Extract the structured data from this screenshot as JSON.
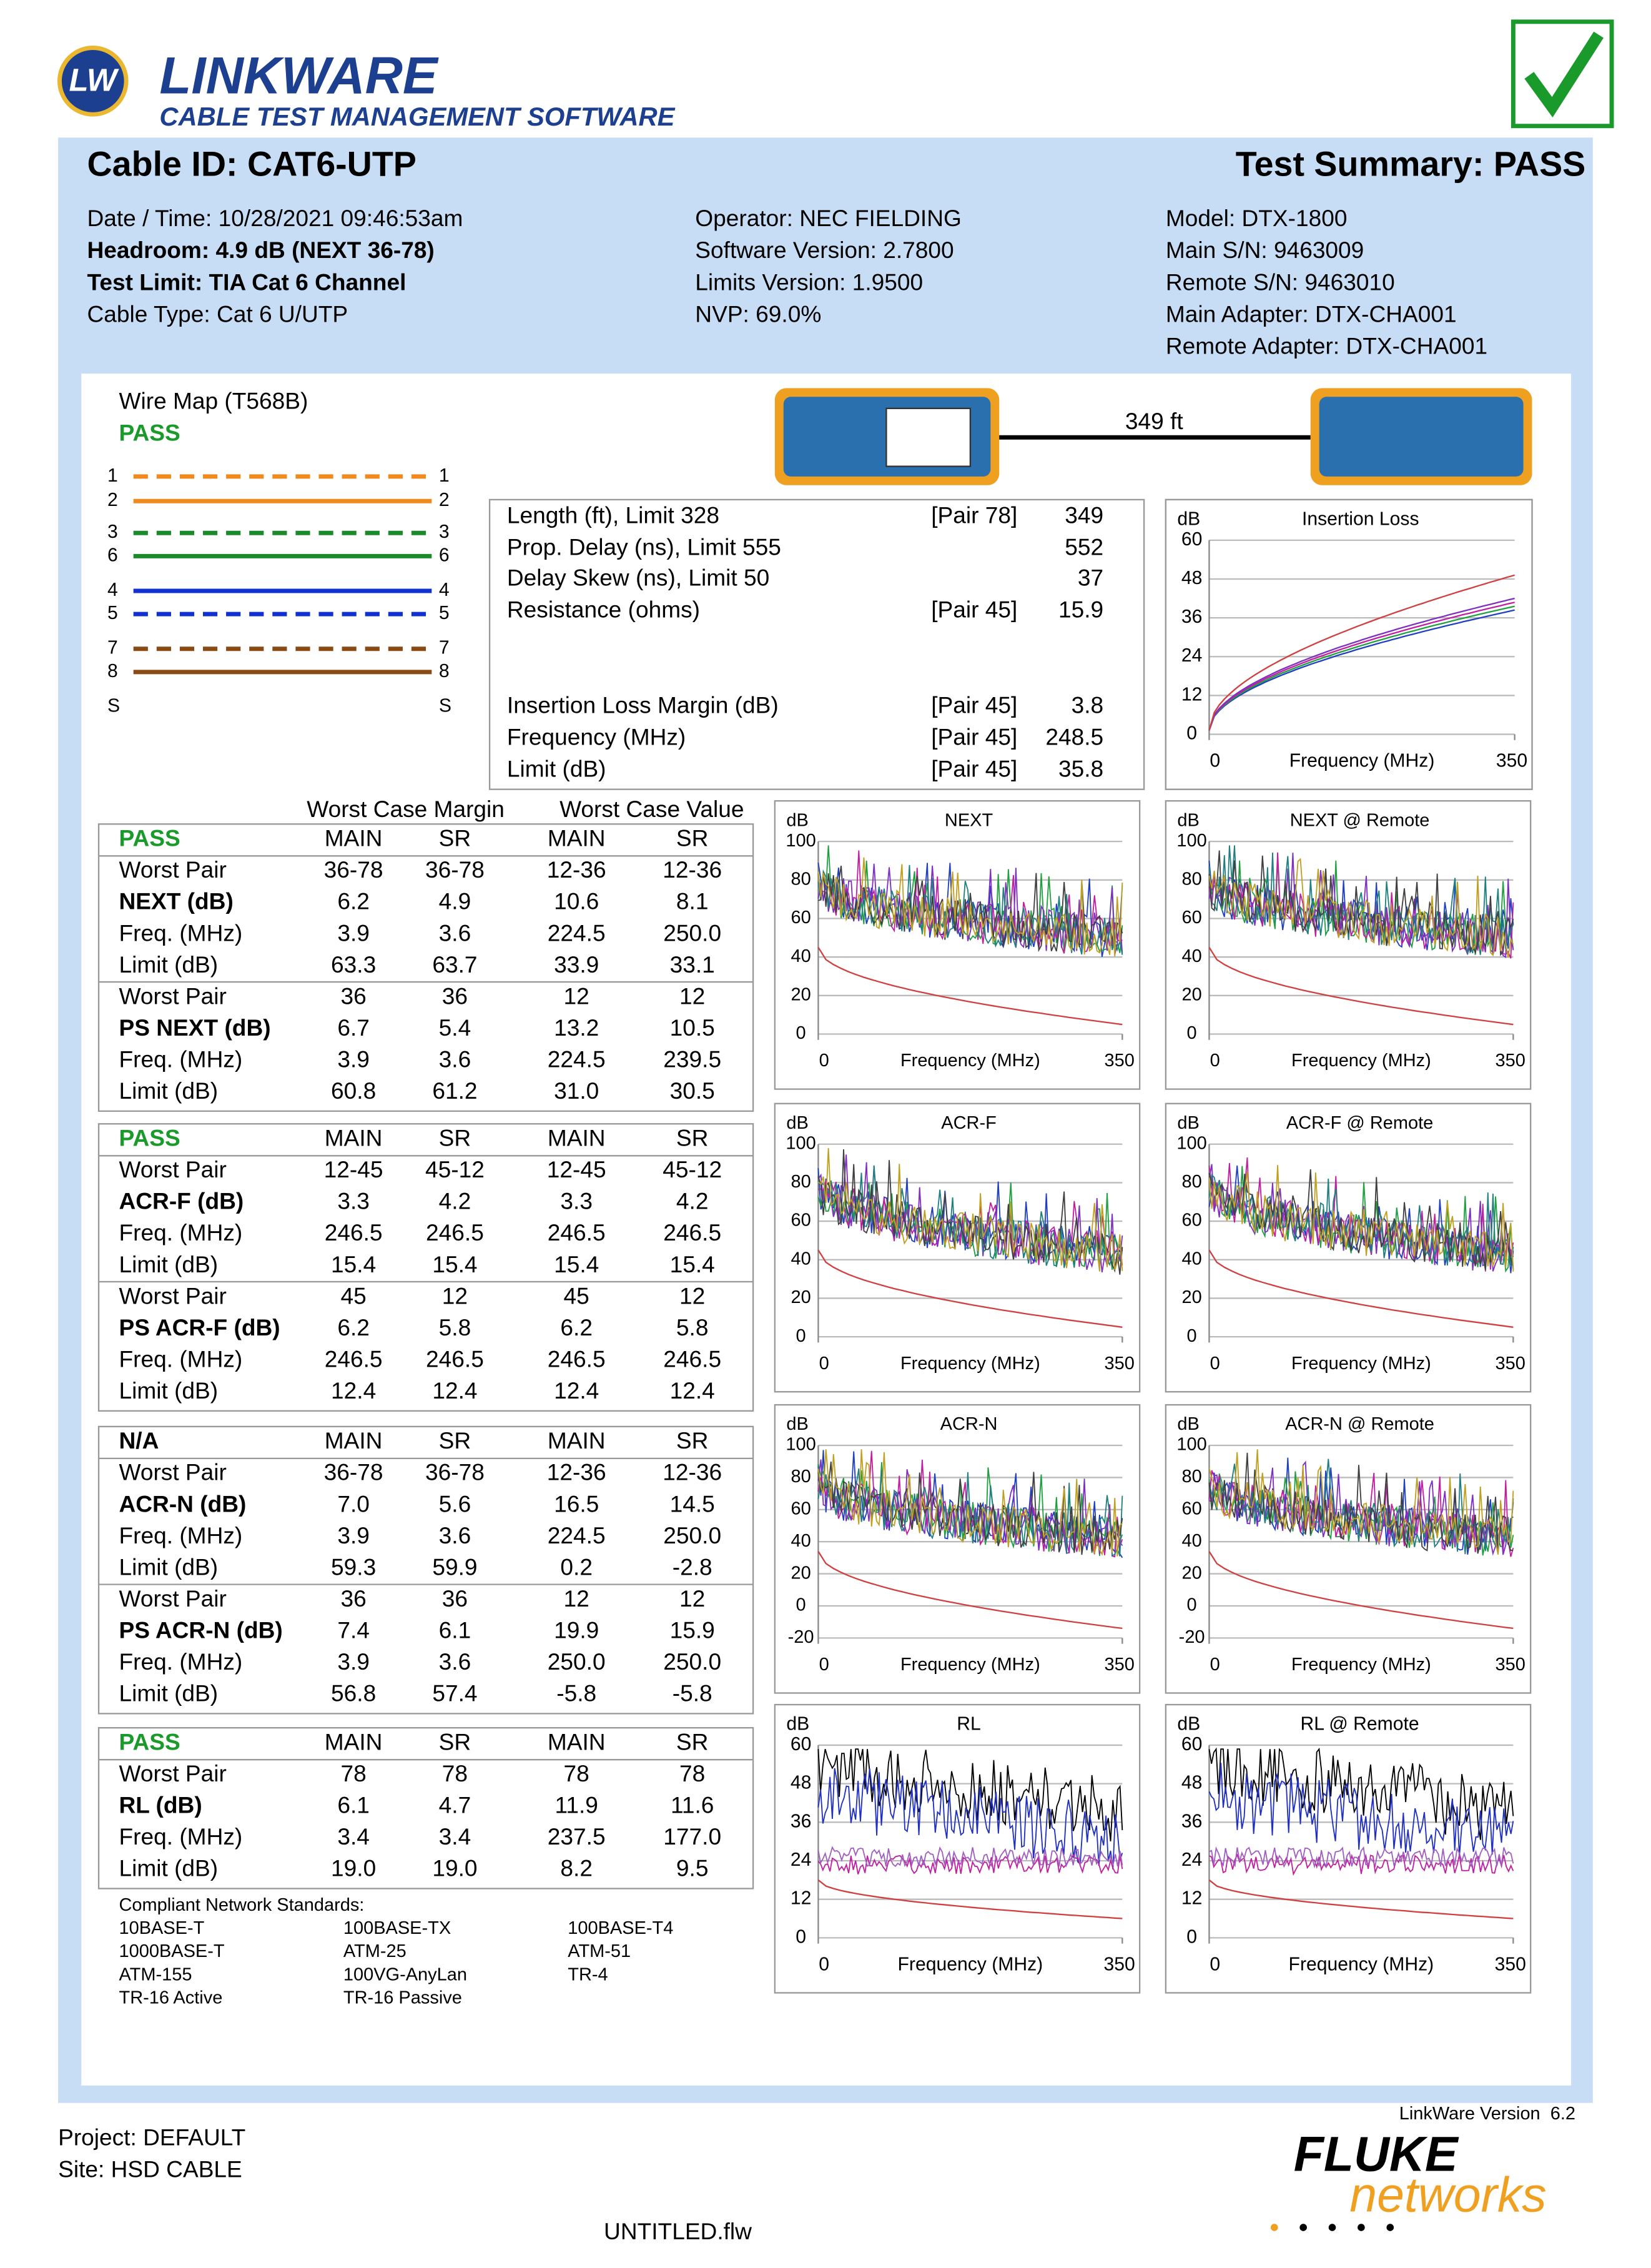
{
  "header": {
    "logo": "LW",
    "brand": "LINKWARE",
    "tagline": "CABLE TEST MANAGEMENT SOFTWARE"
  },
  "summary": {
    "cable_id": "Cable ID: CAT6-UTP",
    "result": "Test Summary: PASS"
  },
  "info": [
    [
      "Date / Time: 10/28/2021 09:46:53am",
      "Headroom: 4.9 dB (NEXT 36-78)",
      "Test Limit: TIA Cat 6 Channel",
      "Cable Type: Cat 6 U/UTP"
    ],
    [
      "Operator: NEC FIELDING",
      "Software Version: 2.7800",
      "Limits Version: 1.9500",
      "NVP: 69.0%"
    ],
    [
      "Model: DTX-1800",
      "Main S/N: 9463009",
      "Remote S/N: 9463010",
      "Main Adapter: DTX-CHA001",
      "Remote Adapter: DTX-CHA001"
    ]
  ],
  "wiremap": {
    "title": "Wire Map (T568B)",
    "result": "PASS",
    "pins": [
      "1",
      "2",
      "3",
      "6",
      "4",
      "5",
      "7",
      "8",
      "S"
    ]
  },
  "length_label": "349 ft",
  "measurements": [
    {
      "label": "Length (ft), Limit 328",
      "pair": "[Pair 78]",
      "value": "349"
    },
    {
      "label": "Prop. Delay (ns), Limit 555",
      "value": "552"
    },
    {
      "label": "Delay Skew (ns), Limit 50",
      "value": "37"
    },
    {
      "label": "Resistance (ohms)",
      "pair": "[Pair 45]",
      "value": "15.9"
    },
    {
      "label": "Insertion Loss Margin (dB)",
      "pair": "[Pair 45]",
      "value": "3.8"
    },
    {
      "label": "Frequency (MHz)",
      "pair": "[Pair 45]",
      "value": "248.5"
    },
    {
      "label": "Limit (dB)",
      "pair": "[Pair 45]",
      "value": "35.8"
    }
  ],
  "insertion_loss": {
    "title": "Insertion Loss",
    "ylabel": "dB",
    "xlabel": "Frequency (MHz)",
    "ylim": [
      0,
      60
    ],
    "yticks": [
      0,
      12,
      24,
      36,
      48,
      60
    ],
    "xlim": [
      0,
      350
    ],
    "xticks": [
      0,
      350
    ]
  },
  "table": {
    "headers": [
      "Worst Case Margin",
      "Worst Case Value"
    ],
    "sections": [
      {
        "status": "PASS",
        "columns": [
          "MAIN",
          "SR",
          "MAIN",
          "SR"
        ],
        "rows": [
          {
            "label": "Worst Pair",
            "cells": [
              "36-78",
              "36-78",
              "12-36",
              "12-36"
            ]
          },
          {
            "label": "NEXT (dB)",
            "cells": [
              "6.2",
              "4.9",
              "10.6",
              "8.1"
            ]
          },
          {
            "label": "Freq. (MHz)",
            "cells": [
              "3.9",
              "3.6",
              "224.5",
              "250.0"
            ]
          },
          {
            "label": "Limit (dB)",
            "cells": [
              "63.3",
              "63.7",
              "33.9",
              "33.1"
            ]
          },
          {
            "label": "Worst Pair",
            "cells": [
              "36",
              "36",
              "12",
              "12"
            ]
          },
          {
            "label": "PS NEXT (dB)",
            "cells": [
              "6.7",
              "5.4",
              "13.2",
              "10.5"
            ]
          },
          {
            "label": "Freq. (MHz)",
            "cells": [
              "3.9",
              "3.6",
              "224.5",
              "239.5"
            ]
          },
          {
            "label": "Limit (dB)",
            "cells": [
              "60.8",
              "61.2",
              "31.0",
              "30.5"
            ]
          }
        ]
      },
      {
        "status": "PASS",
        "columns": [
          "MAIN",
          "SR",
          "MAIN",
          "SR"
        ],
        "rows": [
          {
            "label": "Worst Pair",
            "cells": [
              "12-45",
              "45-12",
              "12-45",
              "45-12"
            ]
          },
          {
            "label": "ACR-F (dB)",
            "cells": [
              "3.3",
              "4.2",
              "3.3",
              "4.2"
            ]
          },
          {
            "label": "Freq. (MHz)",
            "cells": [
              "246.5",
              "246.5",
              "246.5",
              "246.5"
            ]
          },
          {
            "label": "Limit (dB)",
            "cells": [
              "15.4",
              "15.4",
              "15.4",
              "15.4"
            ]
          },
          {
            "label": "Worst Pair",
            "cells": [
              "45",
              "12",
              "45",
              "12"
            ]
          },
          {
            "label": "PS ACR-F (dB)",
            "cells": [
              "6.2",
              "5.8",
              "6.2",
              "5.8"
            ]
          },
          {
            "label": "Freq. (MHz)",
            "cells": [
              "246.5",
              "246.5",
              "246.5",
              "246.5"
            ]
          },
          {
            "label": "Limit (dB)",
            "cells": [
              "12.4",
              "12.4",
              "12.4",
              "12.4"
            ]
          }
        ]
      },
      {
        "status": "N/A",
        "columns": [
          "MAIN",
          "SR",
          "MAIN",
          "SR"
        ],
        "rows": [
          {
            "label": "Worst Pair",
            "cells": [
              "36-78",
              "36-78",
              "12-36",
              "12-36"
            ]
          },
          {
            "label": "ACR-N (dB)",
            "cells": [
              "7.0",
              "5.6",
              "16.5",
              "14.5"
            ]
          },
          {
            "label": "Freq. (MHz)",
            "cells": [
              "3.9",
              "3.6",
              "224.5",
              "250.0"
            ]
          },
          {
            "label": "Limit (dB)",
            "cells": [
              "59.3",
              "59.9",
              "0.2",
              "-2.8"
            ]
          },
          {
            "label": "Worst Pair",
            "cells": [
              "36",
              "36",
              "12",
              "12"
            ]
          },
          {
            "label": "PS ACR-N (dB)",
            "cells": [
              "7.4",
              "6.1",
              "19.9",
              "15.9"
            ]
          },
          {
            "label": "Freq. (MHz)",
            "cells": [
              "3.9",
              "3.6",
              "250.0",
              "250.0"
            ]
          },
          {
            "label": "Limit (dB)",
            "cells": [
              "56.8",
              "57.4",
              "-5.8",
              "-5.8"
            ]
          }
        ]
      },
      {
        "status": "PASS",
        "columns": [
          "MAIN",
          "SR",
          "MAIN",
          "SR"
        ],
        "rows": [
          {
            "label": "Worst Pair",
            "cells": [
              "78",
              "78",
              "78",
              "78"
            ]
          },
          {
            "label": "RL (dB)",
            "cells": [
              "6.1",
              "4.7",
              "11.9",
              "11.6"
            ]
          },
          {
            "label": "Freq. (MHz)",
            "cells": [
              "3.4",
              "3.4",
              "237.5",
              "177.0"
            ]
          },
          {
            "label": "Limit (dB)",
            "cells": [
              "19.0",
              "19.0",
              "8.2",
              "9.5"
            ]
          }
        ]
      }
    ]
  },
  "charts": [
    {
      "title": "NEXT",
      "ylabel": "dB",
      "xlabel": "Frequency (MHz)",
      "ylim": [
        0,
        100
      ],
      "yticks": [
        0,
        20,
        40,
        60,
        80,
        100
      ],
      "xlim": [
        0,
        350
      ],
      "xticks": [
        0,
        350
      ]
    },
    {
      "title": "NEXT @ Remote",
      "ylabel": "dB",
      "xlabel": "Frequency (MHz)",
      "ylim": [
        0,
        100
      ],
      "yticks": [
        0,
        20,
        40,
        60,
        80,
        100
      ],
      "xlim": [
        0,
        350
      ],
      "xticks": [
        0,
        350
      ]
    },
    {
      "title": "ACR-F",
      "ylabel": "dB",
      "xlabel": "Frequency (MHz)",
      "ylim": [
        0,
        100
      ],
      "yticks": [
        0,
        20,
        40,
        60,
        80,
        100
      ],
      "xlim": [
        0,
        350
      ],
      "xticks": [
        0,
        350
      ]
    },
    {
      "title": "ACR-F @ Remote",
      "ylabel": "dB",
      "xlabel": "Frequency (MHz)",
      "ylim": [
        0,
        100
      ],
      "yticks": [
        0,
        20,
        40,
        60,
        80,
        100
      ],
      "xlim": [
        0,
        350
      ],
      "xticks": [
        0,
        350
      ]
    },
    {
      "title": "ACR-N",
      "ylabel": "dB",
      "xlabel": "Frequency (MHz)",
      "ylim": [
        -20,
        100
      ],
      "yticks": [
        -20,
        0,
        20,
        40,
        60,
        80,
        100
      ],
      "xlim": [
        0,
        350
      ],
      "xticks": [
        0,
        350
      ]
    },
    {
      "title": "ACR-N @ Remote",
      "ylabel": "dB",
      "xlabel": "Frequency (MHz)",
      "ylim": [
        -20,
        100
      ],
      "yticks": [
        -20,
        0,
        20,
        40,
        60,
        80,
        100
      ],
      "xlim": [
        0,
        350
      ],
      "xticks": [
        0,
        350
      ]
    },
    {
      "title": "RL",
      "ylabel": "dB",
      "xlabel": "Frequency (MHz)",
      "ylim": [
        0,
        60
      ],
      "yticks": [
        0,
        12,
        24,
        36,
        48,
        60
      ],
      "xlim": [
        0,
        350
      ],
      "xticks": [
        0,
        350
      ]
    },
    {
      "title": "RL @ Remote",
      "ylabel": "dB",
      "xlabel": "Frequency (MHz)",
      "ylim": [
        0,
        60
      ],
      "yticks": [
        0,
        12,
        24,
        36,
        48,
        60
      ],
      "xlim": [
        0,
        350
      ],
      "xticks": [
        0,
        350
      ]
    }
  ],
  "standards": {
    "title": "Compliant Network Standards:",
    "rows": [
      [
        "10BASE-T",
        "100BASE-TX",
        "100BASE-T4"
      ],
      [
        "1000BASE-T",
        "ATM-25",
        "ATM-51"
      ],
      [
        "ATM-155",
        "100VG-AnyLan",
        "TR-4"
      ],
      [
        "TR-16 Active",
        "TR-16 Passive"
      ]
    ]
  },
  "footer": {
    "version": "LinkWare Version  6.2",
    "project": "Project: DEFAULT",
    "site": "Site: HSD CABLE",
    "file": "UNTITLED.flw",
    "brand1": "FLUKE",
    "brand2": "networks"
  }
}
